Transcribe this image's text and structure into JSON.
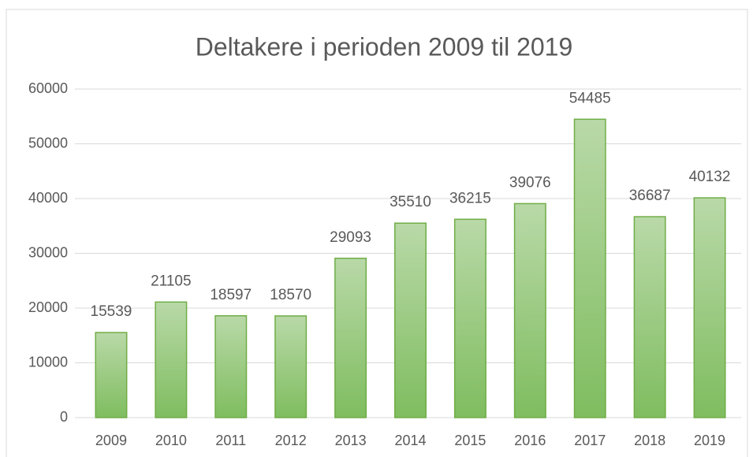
{
  "chart_data": {
    "type": "bar",
    "title": "Deltakere i perioden 2009 til 2019",
    "categories": [
      "2009",
      "2010",
      "2011",
      "2012",
      "2013",
      "2014",
      "2015",
      "2016",
      "2017",
      "2018",
      "2019"
    ],
    "values": [
      15539,
      21105,
      18597,
      18570,
      29093,
      35510,
      36215,
      39076,
      54485,
      36687,
      40132
    ],
    "color": "#70ad47",
    "ylim": [
      0,
      60000
    ],
    "yticks": [
      0,
      10000,
      20000,
      30000,
      40000,
      50000,
      60000
    ],
    "grid": true
  }
}
